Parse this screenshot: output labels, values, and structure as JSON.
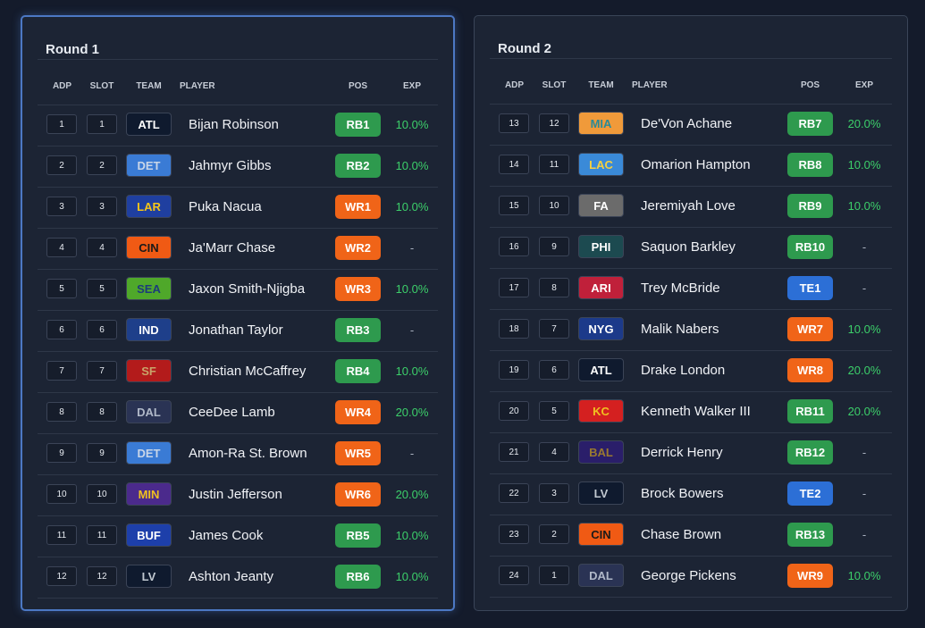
{
  "rounds": [
    {
      "title": "Round 1",
      "headers": [
        "ADP",
        "SLOT",
        "TEAM",
        "PLAYER",
        "POS",
        "EXP"
      ],
      "rows": [
        {
          "adp": "1",
          "slot": "1",
          "team": "ATL",
          "team_bg": "#0f1a2e",
          "team_fg": "#ffffff",
          "player": "Bijan Robinson",
          "pos": "RB1",
          "exp": "10.0%"
        },
        {
          "adp": "2",
          "slot": "2",
          "team": "DET",
          "team_bg": "#3a7bd5",
          "team_fg": "#c9d6e8",
          "player": "Jahmyr Gibbs",
          "pos": "RB2",
          "exp": "10.0%"
        },
        {
          "adp": "3",
          "slot": "3",
          "team": "LAR",
          "team_bg": "#1f3fa0",
          "team_fg": "#f5c518",
          "player": "Puka Nacua",
          "pos": "WR1",
          "exp": "10.0%"
        },
        {
          "adp": "4",
          "slot": "4",
          "team": "CIN",
          "team_bg": "#f05a14",
          "team_fg": "#1a1a1a",
          "player": "Ja'Marr Chase",
          "pos": "WR2",
          "exp": "-"
        },
        {
          "adp": "5",
          "slot": "5",
          "team": "SEA",
          "team_bg": "#4fa82a",
          "team_fg": "#1c3c7a",
          "player": "Jaxon Smith-Njigba",
          "pos": "WR3",
          "exp": "10.0%"
        },
        {
          "adp": "6",
          "slot": "6",
          "team": "IND",
          "team_bg": "#1e3f8a",
          "team_fg": "#ffffff",
          "player": "Jonathan Taylor",
          "pos": "RB3",
          "exp": "-"
        },
        {
          "adp": "7",
          "slot": "7",
          "team": "SF",
          "team_bg": "#b31b1b",
          "team_fg": "#c9a46a",
          "player": "Christian McCaffrey",
          "pos": "RB4",
          "exp": "10.0%"
        },
        {
          "adp": "8",
          "slot": "8",
          "team": "DAL",
          "team_bg": "#2a3354",
          "team_fg": "#b0b8c8",
          "player": "CeeDee Lamb",
          "pos": "WR4",
          "exp": "20.0%"
        },
        {
          "adp": "9",
          "slot": "9",
          "team": "DET",
          "team_bg": "#3a7bd5",
          "team_fg": "#c9d6e8",
          "player": "Amon-Ra St. Brown",
          "pos": "WR5",
          "exp": "-"
        },
        {
          "adp": "10",
          "slot": "10",
          "team": "MIN",
          "team_bg": "#4b2a8c",
          "team_fg": "#f0c020",
          "player": "Justin Jefferson",
          "pos": "WR6",
          "exp": "20.0%"
        },
        {
          "adp": "11",
          "slot": "11",
          "team": "BUF",
          "team_bg": "#1d3faa",
          "team_fg": "#ffffff",
          "player": "James Cook",
          "pos": "RB5",
          "exp": "10.0%"
        },
        {
          "adp": "12",
          "slot": "12",
          "team": "LV",
          "team_bg": "#0f1a2e",
          "team_fg": "#c0c8d0",
          "player": "Ashton Jeanty",
          "pos": "RB6",
          "exp": "10.0%"
        }
      ]
    },
    {
      "title": "Round 2",
      "headers": [
        "ADP",
        "SLOT",
        "TEAM",
        "PLAYER",
        "POS",
        "EXP"
      ],
      "rows": [
        {
          "adp": "13",
          "slot": "12",
          "team": "MIA",
          "team_bg": "#f09a3a",
          "team_fg": "#2a8a98",
          "player": "De'Von Achane",
          "pos": "RB7",
          "exp": "20.0%"
        },
        {
          "adp": "14",
          "slot": "11",
          "team": "LAC",
          "team_bg": "#3a8ad8",
          "team_fg": "#f5d040",
          "player": "Omarion Hampton",
          "pos": "RB8",
          "exp": "10.0%"
        },
        {
          "adp": "15",
          "slot": "10",
          "team": "FA",
          "team_bg": "#6b6b6b",
          "team_fg": "#ffffff",
          "player": "Jeremiyah Love",
          "pos": "RB9",
          "exp": "10.0%"
        },
        {
          "adp": "16",
          "slot": "9",
          "team": "PHI",
          "team_bg": "#1c4a50",
          "team_fg": "#ffffff",
          "player": "Saquon Barkley",
          "pos": "RB10",
          "exp": "-"
        },
        {
          "adp": "17",
          "slot": "8",
          "team": "ARI",
          "team_bg": "#c0203a",
          "team_fg": "#ffffff",
          "player": "Trey McBride",
          "pos": "TE1",
          "exp": "-"
        },
        {
          "adp": "18",
          "slot": "7",
          "team": "NYG",
          "team_bg": "#1c3a8a",
          "team_fg": "#ffffff",
          "player": "Malik Nabers",
          "pos": "WR7",
          "exp": "10.0%"
        },
        {
          "adp": "19",
          "slot": "6",
          "team": "ATL",
          "team_bg": "#0f1a2e",
          "team_fg": "#ffffff",
          "player": "Drake London",
          "pos": "WR8",
          "exp": "20.0%"
        },
        {
          "adp": "20",
          "slot": "5",
          "team": "KC",
          "team_bg": "#d42020",
          "team_fg": "#f0c020",
          "player": "Kenneth Walker III",
          "pos": "RB11",
          "exp": "20.0%"
        },
        {
          "adp": "21",
          "slot": "4",
          "team": "BAL",
          "team_bg": "#2a1e6a",
          "team_fg": "#9a7a30",
          "player": "Derrick Henry",
          "pos": "RB12",
          "exp": "-"
        },
        {
          "adp": "22",
          "slot": "3",
          "team": "LV",
          "team_bg": "#0f1a2e",
          "team_fg": "#c0c8d0",
          "player": "Brock Bowers",
          "pos": "TE2",
          "exp": "-"
        },
        {
          "adp": "23",
          "slot": "2",
          "team": "CIN",
          "team_bg": "#f05a14",
          "team_fg": "#1a1a1a",
          "player": "Chase Brown",
          "pos": "RB13",
          "exp": "-"
        },
        {
          "adp": "24",
          "slot": "1",
          "team": "DAL",
          "team_bg": "#2a3354",
          "team_fg": "#b0b8c8",
          "player": "George Pickens",
          "pos": "WR9",
          "exp": "10.0%"
        }
      ]
    }
  ]
}
